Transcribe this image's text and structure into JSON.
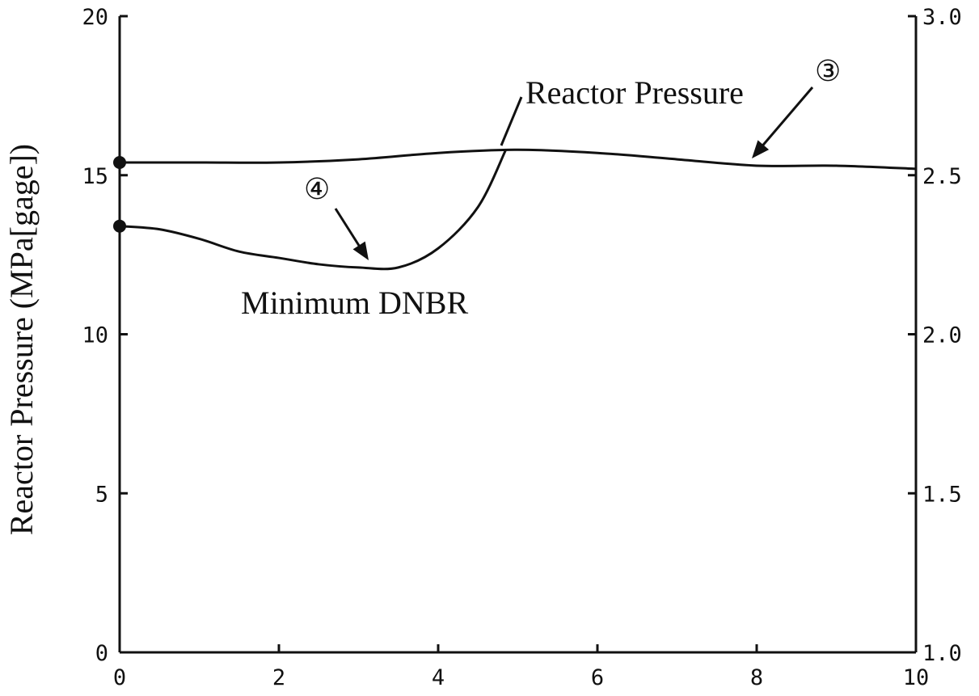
{
  "chart_data": {
    "type": "line",
    "ylabel": "Reactor Pressure (MPa[gage])",
    "xlim": [
      0,
      10
    ],
    "ylim": [
      0,
      20
    ],
    "y2lim": [
      1.0,
      3.0
    ],
    "x_ticks": [
      "0",
      "2",
      "4",
      "6",
      "8",
      "10"
    ],
    "y_ticks": [
      "0",
      "5",
      "10",
      "15",
      "20"
    ],
    "y2_ticks": [
      "1.0",
      "1.5",
      "2.0",
      "2.5",
      "3.0"
    ],
    "grid": false,
    "series": [
      {
        "name": "Reactor Pressure",
        "axis": "left",
        "marker": "③",
        "x": [
          0,
          1,
          2,
          3,
          4,
          5,
          6,
          7,
          8,
          9,
          10
        ],
        "y": [
          15.4,
          15.4,
          15.4,
          15.5,
          15.7,
          15.8,
          15.7,
          15.5,
          15.3,
          15.3,
          15.2
        ]
      },
      {
        "name": "Minimum DNBR",
        "axis": "right",
        "marker": "④",
        "x": [
          0,
          0.5,
          1,
          1.5,
          2,
          2.5,
          3,
          3.5,
          4,
          4.5,
          4.85
        ],
        "y": [
          2.34,
          2.33,
          2.3,
          2.26,
          2.24,
          2.22,
          2.21,
          2.21,
          2.27,
          2.4,
          2.58
        ]
      }
    ],
    "annotations": [
      {
        "label": "Reactor Pressure",
        "marker": "③"
      },
      {
        "label": "Minimum DNBR",
        "marker": "④"
      }
    ]
  }
}
